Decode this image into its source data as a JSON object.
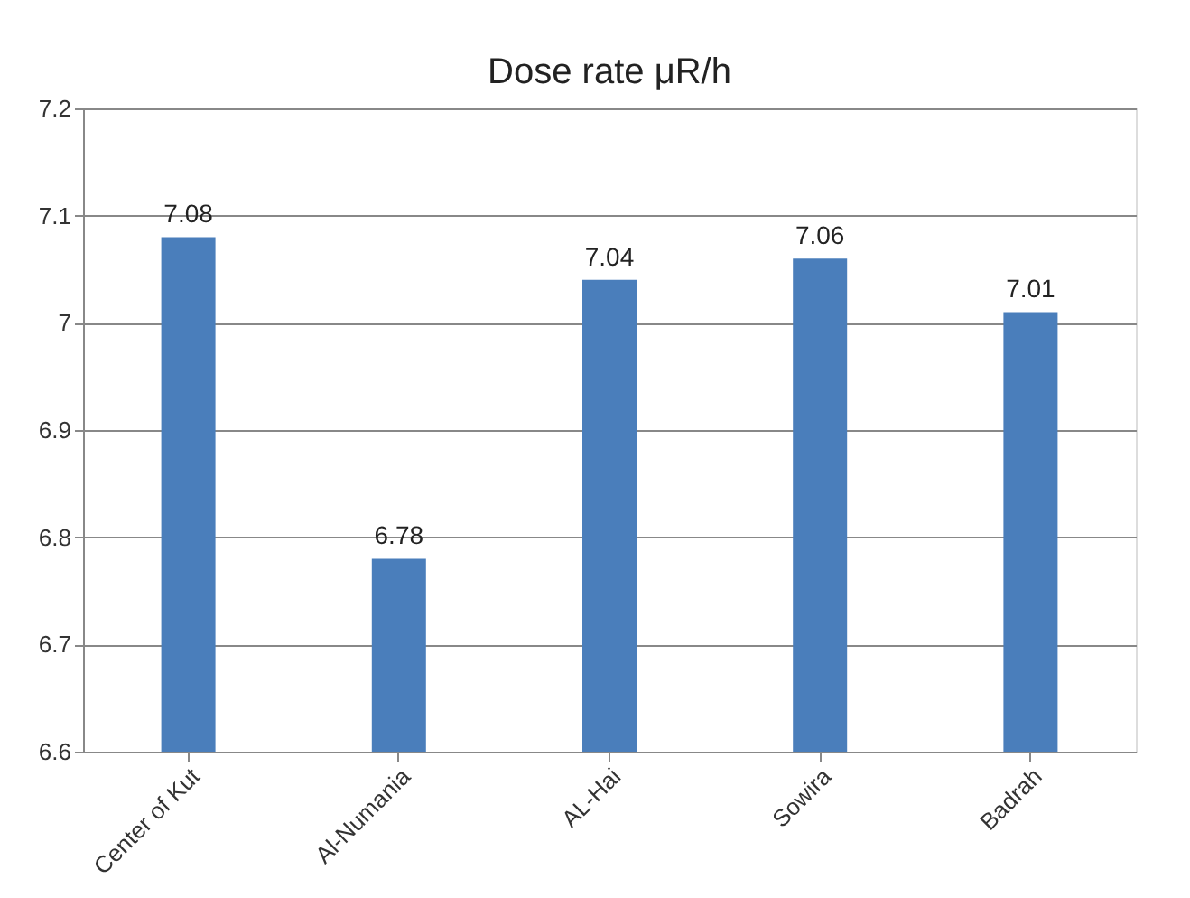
{
  "chart_data": {
    "type": "bar",
    "title": "Dose rate μR/h",
    "categories": [
      "Center of Kut",
      "Al-Numania",
      "AL-Hai",
      "Sowira",
      "Badrah"
    ],
    "values": [
      7.08,
      6.78,
      7.04,
      7.06,
      7.01
    ],
    "color": "#4a7ebb",
    "ylim": [
      6.6,
      7.2
    ],
    "yticks": [
      6.6,
      6.7,
      6.8,
      6.9,
      7,
      7.1,
      7.2
    ],
    "grid": "y",
    "data_labels": true
  }
}
